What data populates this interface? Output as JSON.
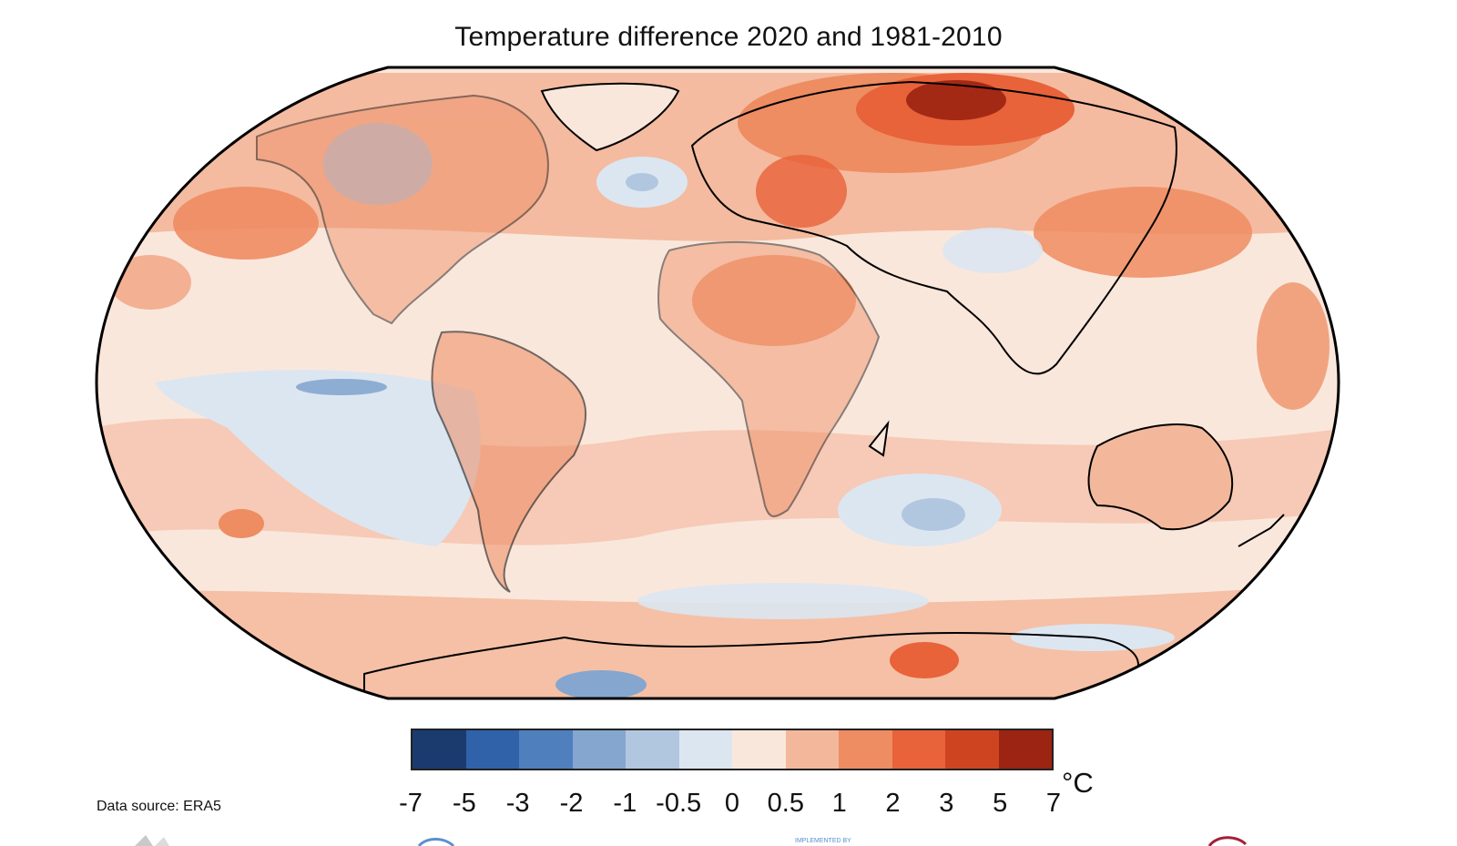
{
  "title": "Temperature difference 2020 and 1981-2010",
  "colorbar": {
    "ticks": [
      "-7",
      "-5",
      "-3",
      "-2",
      "-1",
      "-0.5",
      "0",
      "0.5",
      "1",
      "2",
      "3",
      "5",
      "7"
    ],
    "colors": [
      "#1b3b6f",
      "#2f62a8",
      "#4f7fbd",
      "#84a6cf",
      "#b1c7e0",
      "#dce6f1",
      "#fae7dc",
      "#f3b89c",
      "#ee8c62",
      "#e8623a",
      "#cf4420",
      "#9b2412"
    ],
    "unit": "°C"
  },
  "source": "Data source: ERA5",
  "footer_tiny": "IMPLEMENTED BY",
  "map": {
    "ocean_base_color": "#fae7dc",
    "coastline_color": "#000000",
    "warm_hotspot_color": "#cf4420",
    "cool_anomaly_color": "#b1c7e0"
  }
}
